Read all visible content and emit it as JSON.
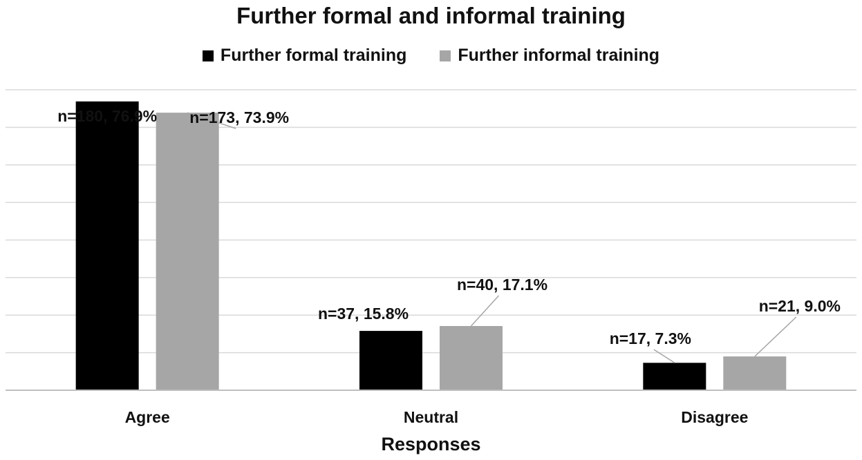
{
  "chart_data": {
    "type": "bar",
    "title": "Further formal and informal training",
    "xlabel": "Responses",
    "ylabel": "",
    "categories": [
      "Agree",
      "Neutral",
      "Disagree"
    ],
    "ylim": [
      0,
      80
    ],
    "grid": true,
    "legend_position": "top-center",
    "series": [
      {
        "name": "Further formal training",
        "color": "#000000",
        "values": [
          76.9,
          15.8,
          7.3
        ],
        "labels": [
          "n=180, 76.9%",
          "n=37, 15.8%",
          "n=17, 7.3%"
        ]
      },
      {
        "name": "Further informal training",
        "color": "#a6a6a6",
        "values": [
          73.9,
          17.1,
          9.0
        ],
        "labels": [
          "n=173, 73.9%",
          "n=40, 17.1%",
          "n=21, 9.0%"
        ]
      }
    ],
    "colors": {
      "gridline": "#d9d9d9",
      "axis": "#bfbfbf",
      "leader": "#a6a6a6"
    }
  }
}
